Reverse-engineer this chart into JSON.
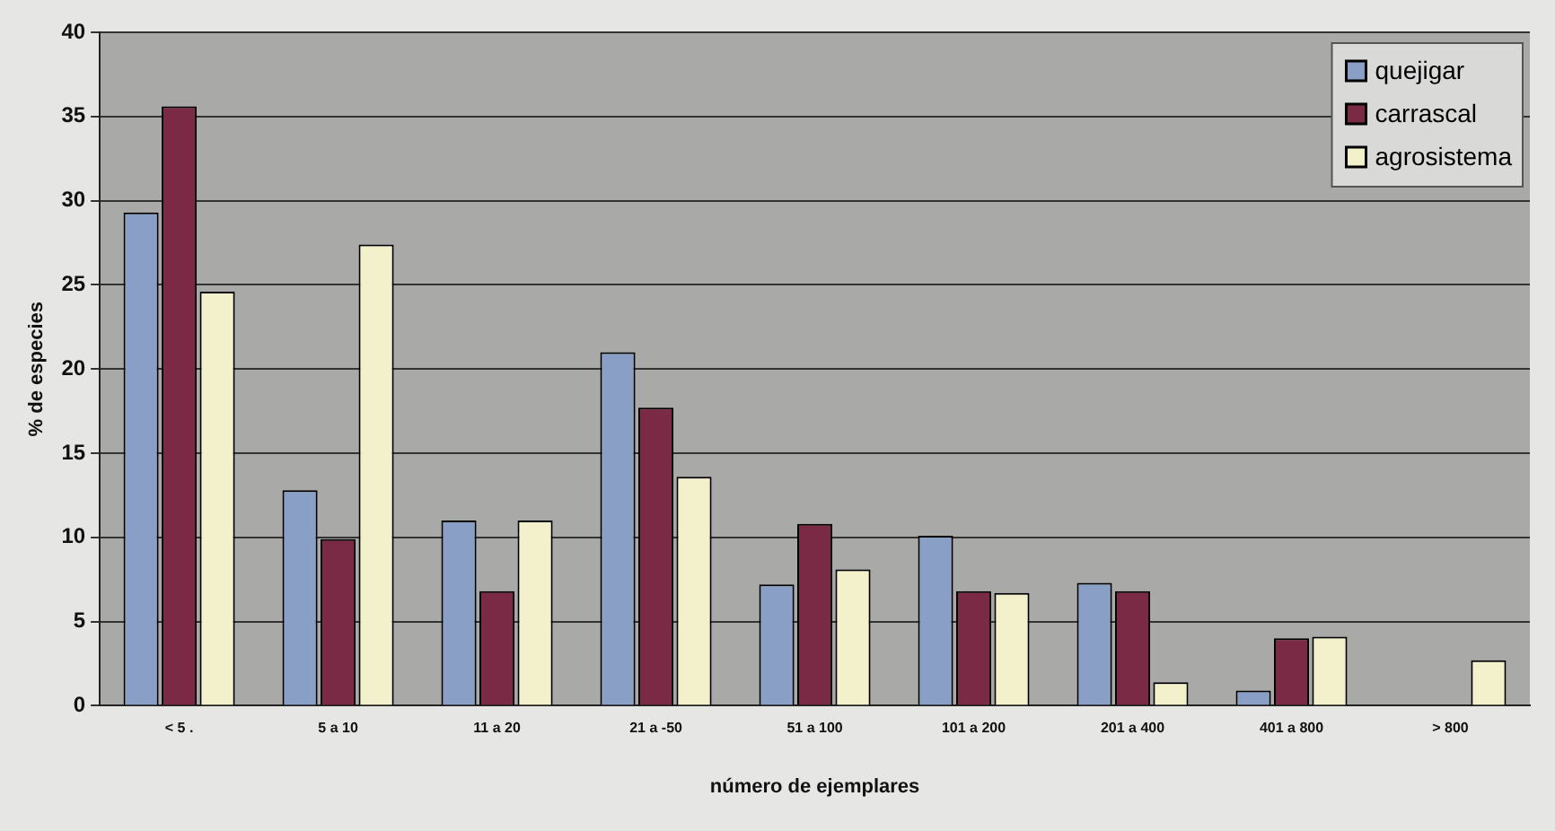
{
  "chart_data": {
    "type": "bar",
    "xlabel": "número de ejemplares",
    "ylabel": "% de especies",
    "categories": [
      "< 5 .",
      "5 a 10",
      "11 a 20",
      "21 a -50",
      "51 a 100",
      "101 a 200",
      "201 a 400",
      "401 a 800",
      "> 800"
    ],
    "series": [
      {
        "name": "quejigar",
        "color": "#8a9fc6",
        "values": [
          29.3,
          12.8,
          11,
          21,
          7.2,
          10.1,
          7.3,
          0.9,
          null
        ]
      },
      {
        "name": "carrascal",
        "color": "#7a2a44",
        "values": [
          35.6,
          9.9,
          6.8,
          17.7,
          10.8,
          6.8,
          6.8,
          4.0,
          null
        ]
      },
      {
        "name": "agrosistema",
        "color": "#f3f1cc",
        "values": [
          24.6,
          27.4,
          11,
          13.6,
          8.1,
          6.7,
          1.4,
          4.1,
          2.7
        ]
      }
    ],
    "ylim": [
      0,
      40
    ],
    "yticks": [
      0,
      5,
      10,
      15,
      20,
      25,
      30,
      35,
      40
    ],
    "grid": "y",
    "legend": "top right"
  }
}
